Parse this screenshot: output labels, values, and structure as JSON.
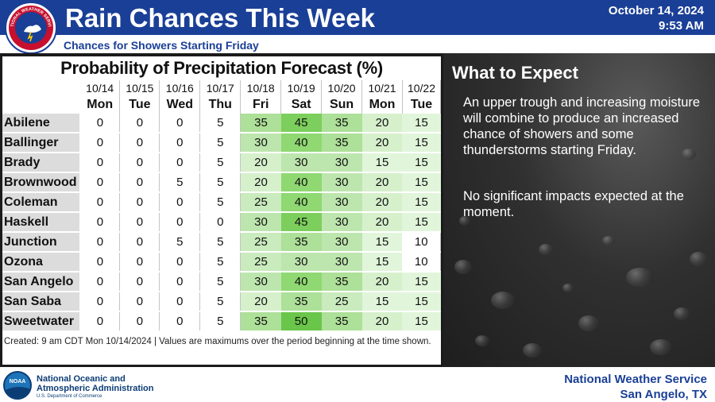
{
  "header": {
    "title": "Rain Chances This Week",
    "subtitle": "Chances for Showers Starting Friday",
    "date": "October 14, 2024",
    "time": "9:53 AM",
    "seal_text": "NATIONAL WEATHER SERVICE",
    "band_color": "#1a3f96"
  },
  "chart_data": {
    "type": "table",
    "title": "Probability of Precipitation Forecast (%)",
    "dates": [
      "10/14",
      "10/15",
      "10/16",
      "10/17",
      "10/18",
      "10/19",
      "10/20",
      "10/21",
      "10/22"
    ],
    "days": [
      "Mon",
      "Tue",
      "Wed",
      "Thu",
      "Fri",
      "Sat",
      "Sun",
      "Mon",
      "Tue"
    ],
    "rows": [
      {
        "city": "Abilene",
        "values": [
          0,
          0,
          0,
          5,
          35,
          45,
          35,
          20,
          15
        ]
      },
      {
        "city": "Ballinger",
        "values": [
          0,
          0,
          0,
          5,
          30,
          40,
          35,
          20,
          15
        ]
      },
      {
        "city": "Brady",
        "values": [
          0,
          0,
          0,
          5,
          20,
          30,
          30,
          15,
          15
        ]
      },
      {
        "city": "Brownwood",
        "values": [
          0,
          0,
          5,
          5,
          20,
          40,
          30,
          20,
          15
        ]
      },
      {
        "city": "Coleman",
        "values": [
          0,
          0,
          0,
          5,
          25,
          40,
          30,
          20,
          15
        ]
      },
      {
        "city": "Haskell",
        "values": [
          0,
          0,
          0,
          0,
          30,
          45,
          30,
          20,
          15
        ]
      },
      {
        "city": "Junction",
        "values": [
          0,
          0,
          5,
          5,
          25,
          35,
          30,
          15,
          10
        ]
      },
      {
        "city": "Ozona",
        "values": [
          0,
          0,
          0,
          5,
          25,
          30,
          30,
          15,
          10
        ]
      },
      {
        "city": "San Angelo",
        "values": [
          0,
          0,
          0,
          5,
          30,
          40,
          35,
          20,
          15
        ]
      },
      {
        "city": "San Saba",
        "values": [
          0,
          0,
          0,
          5,
          20,
          35,
          25,
          15,
          15
        ]
      },
      {
        "city": "Sweetwater",
        "values": [
          0,
          0,
          0,
          5,
          35,
          50,
          35,
          20,
          15
        ]
      }
    ],
    "footnote": "Created: 9 am CDT Mon 10/14/2024  |  Values are maximums over the period beginning at the time shown."
  },
  "expect": {
    "heading": "What to Expect",
    "paragraph1": "An upper trough and increasing moisture will combine to produce an increased chance of showers and some thunderstorms starting Friday.",
    "paragraph2": "No significant impacts expected at the moment."
  },
  "footer": {
    "noaa_line1": "National Oceanic and",
    "noaa_line2": "Atmospheric Administration",
    "noaa_dept": "U.S. Department of Commerce",
    "noaa_logo_text": "NOAA",
    "nws_line1": "National Weather Service",
    "nws_line2": "San Angelo, TX"
  }
}
